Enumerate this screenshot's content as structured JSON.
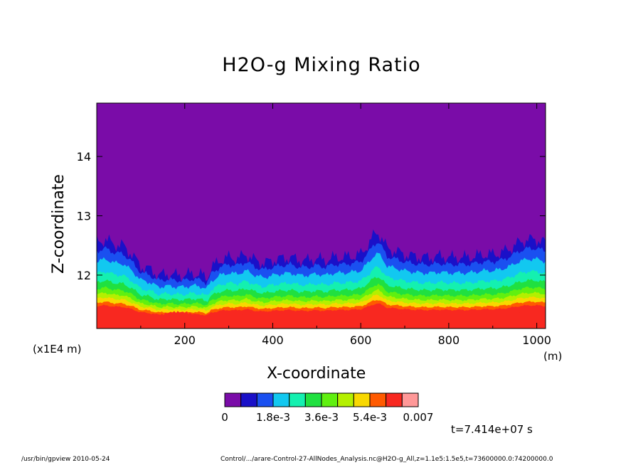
{
  "chart_data": {
    "type": "heatmap",
    "title": "H2O-g Mixing Ratio",
    "xlabel": "X-coordinate",
    "ylabel": "Z-coordinate",
    "x_unit": "(m)",
    "y_unit": "(x1E4 m)",
    "xlim": [
      0,
      1020
    ],
    "ylim": [
      11.1,
      14.9
    ],
    "x_ticks": [
      200,
      400,
      600,
      800,
      1000
    ],
    "y_ticks": [
      12,
      13,
      14
    ],
    "x_tick_labels": [
      "200",
      "400",
      "600",
      "800",
      "1000"
    ],
    "y_tick_labels": [
      "12",
      "13",
      "14"
    ],
    "colorbar": {
      "levels": [
        0,
        0.0006,
        0.0012,
        0.0018,
        0.0024,
        0.003,
        0.0036,
        0.0042,
        0.0048,
        0.0054,
        0.006,
        0.0066,
        0.007
      ],
      "labels": [
        "0",
        "1.8e-3",
        "3.6e-3",
        "5.4e-3",
        "0.007"
      ],
      "label_values": [
        0,
        0.0018,
        0.0036,
        0.0054,
        0.007
      ],
      "colors": [
        "#7a0ca8",
        "#1a10c8",
        "#1a50f0",
        "#12c8f0",
        "#14f0b0",
        "#20e040",
        "#60f010",
        "#b4f000",
        "#f8d800",
        "#ff5a00",
        "#f82820",
        "#ff9898"
      ]
    },
    "profile_x": [
      0,
      20,
      40,
      60,
      80,
      100,
      120,
      140,
      160,
      180,
      200,
      220,
      240,
      250,
      260,
      280,
      300,
      320,
      340,
      360,
      380,
      400,
      420,
      440,
      460,
      480,
      500,
      520,
      540,
      560,
      580,
      600,
      620,
      630,
      640,
      650,
      660,
      680,
      700,
      720,
      740,
      760,
      780,
      800,
      820,
      840,
      860,
      880,
      900,
      920,
      940,
      960,
      980,
      1000,
      1020
    ],
    "moist_top_z": [
      12.55,
      12.6,
      12.52,
      12.5,
      12.35,
      12.15,
      12.1,
      12.0,
      12.02,
      12.0,
      12.0,
      12.03,
      12.0,
      11.95,
      12.12,
      12.25,
      12.3,
      12.28,
      12.35,
      12.25,
      12.2,
      12.25,
      12.28,
      12.3,
      12.25,
      12.25,
      12.28,
      12.25,
      12.3,
      12.3,
      12.32,
      12.35,
      12.55,
      12.68,
      12.72,
      12.6,
      12.45,
      12.4,
      12.35,
      12.32,
      12.3,
      12.3,
      12.32,
      12.3,
      12.3,
      12.3,
      12.32,
      12.35,
      12.35,
      12.38,
      12.45,
      12.55,
      12.6,
      12.6,
      12.55
    ],
    "dry_air_value": 0,
    "surface_value": 0.0063
  },
  "annotations": {
    "time": "t=7.414e+07 s",
    "footer_left": "/usr/bin/gpview   2010-05-24",
    "footer_right": "Control/.../arare-Control-27-AllNodes_Analysis.nc@H2O-g_All,z=1.1e5:1.5e5,t=73600000.0:74200000.0"
  }
}
